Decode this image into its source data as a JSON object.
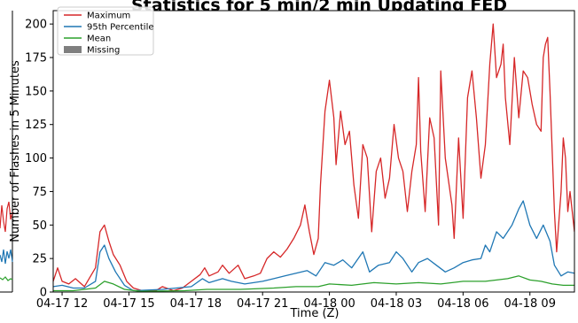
{
  "chart_data": {
    "type": "line",
    "title": "Statistics for 5 min/2 min Updating FED",
    "xlabel": "Time (Z)",
    "ylabel": "Number of Flashes in 5 Minutes",
    "x_unit": "hours",
    "x_ticks": [
      {
        "x": 12,
        "label": "04-17 12"
      },
      {
        "x": 15,
        "label": "04-17 15"
      },
      {
        "x": 18,
        "label": "04-17 18"
      },
      {
        "x": 21,
        "label": "04-17 21"
      },
      {
        "x": 24,
        "label": "04-18 00"
      },
      {
        "x": 27,
        "label": "04-18 03"
      },
      {
        "x": 30,
        "label": "04-18 06"
      },
      {
        "x": 33,
        "label": "04-18 09"
      }
    ],
    "xlim": [
      11.6,
      35.0
    ],
    "ylim": [
      0,
      210
    ],
    "yticks": [
      0,
      25,
      50,
      75,
      100,
      125,
      150,
      175,
      200
    ],
    "grid": false,
    "legend_position": "top-left",
    "series": [
      {
        "name": "Maximum",
        "color": "#d62728",
        "points": [
          [
            11.6,
            8
          ],
          [
            11.8,
            18
          ],
          [
            12.0,
            8
          ],
          [
            12.3,
            6
          ],
          [
            12.6,
            10
          ],
          [
            13.0,
            4
          ],
          [
            13.5,
            18
          ],
          [
            13.7,
            45
          ],
          [
            13.9,
            50
          ],
          [
            14.1,
            38
          ],
          [
            14.3,
            28
          ],
          [
            14.6,
            20
          ],
          [
            14.9,
            8
          ],
          [
            15.2,
            3
          ],
          [
            15.6,
            1
          ],
          [
            16.2,
            1
          ],
          [
            16.5,
            4
          ],
          [
            17.0,
            1
          ],
          [
            17.4,
            3
          ],
          [
            17.8,
            8
          ],
          [
            18.2,
            13
          ],
          [
            18.4,
            18
          ],
          [
            18.6,
            12
          ],
          [
            19.0,
            15
          ],
          [
            19.2,
            20
          ],
          [
            19.5,
            14
          ],
          [
            19.9,
            20
          ],
          [
            20.2,
            10
          ],
          [
            20.6,
            12
          ],
          [
            20.9,
            14
          ],
          [
            21.2,
            25
          ],
          [
            21.5,
            30
          ],
          [
            21.8,
            26
          ],
          [
            22.1,
            32
          ],
          [
            22.4,
            40
          ],
          [
            22.7,
            50
          ],
          [
            22.9,
            65
          ],
          [
            23.1,
            45
          ],
          [
            23.3,
            28
          ],
          [
            23.5,
            40
          ],
          [
            23.6,
            80
          ],
          [
            23.8,
            135
          ],
          [
            24.0,
            158
          ],
          [
            24.2,
            130
          ],
          [
            24.3,
            95
          ],
          [
            24.5,
            135
          ],
          [
            24.7,
            110
          ],
          [
            24.9,
            120
          ],
          [
            25.1,
            80
          ],
          [
            25.3,
            55
          ],
          [
            25.5,
            110
          ],
          [
            25.7,
            100
          ],
          [
            25.9,
            45
          ],
          [
            26.1,
            90
          ],
          [
            26.3,
            100
          ],
          [
            26.5,
            70
          ],
          [
            26.7,
            85
          ],
          [
            26.9,
            125
          ],
          [
            27.1,
            100
          ],
          [
            27.3,
            90
          ],
          [
            27.5,
            60
          ],
          [
            27.7,
            90
          ],
          [
            27.9,
            110
          ],
          [
            28.0,
            160
          ],
          [
            28.1,
            105
          ],
          [
            28.3,
            60
          ],
          [
            28.5,
            130
          ],
          [
            28.7,
            115
          ],
          [
            28.9,
            50
          ],
          [
            29.0,
            165
          ],
          [
            29.2,
            100
          ],
          [
            29.5,
            65
          ],
          [
            29.6,
            40
          ],
          [
            29.8,
            115
          ],
          [
            30.0,
            55
          ],
          [
            30.2,
            145
          ],
          [
            30.4,
            165
          ],
          [
            30.6,
            130
          ],
          [
            30.8,
            85
          ],
          [
            31.0,
            110
          ],
          [
            31.2,
            170
          ],
          [
            31.35,
            200
          ],
          [
            31.5,
            160
          ],
          [
            31.7,
            170
          ],
          [
            31.8,
            185
          ],
          [
            31.9,
            145
          ],
          [
            32.1,
            110
          ],
          [
            32.3,
            175
          ],
          [
            32.5,
            130
          ],
          [
            32.7,
            165
          ],
          [
            32.9,
            160
          ],
          [
            33.1,
            140
          ],
          [
            33.3,
            125
          ],
          [
            33.5,
            120
          ],
          [
            33.6,
            175
          ],
          [
            33.7,
            185
          ],
          [
            33.8,
            190
          ],
          [
            33.9,
            150
          ],
          [
            34.1,
            60
          ],
          [
            34.2,
            30
          ],
          [
            34.4,
            75
          ],
          [
            34.5,
            115
          ],
          [
            34.6,
            100
          ],
          [
            34.7,
            60
          ],
          [
            34.8,
            75
          ],
          [
            34.9,
            60
          ],
          [
            35.0,
            45
          ]
        ]
      },
      {
        "name": "95th Percentile",
        "color": "#1f77b4",
        "points": [
          [
            11.6,
            4
          ],
          [
            12.0,
            5
          ],
          [
            12.5,
            3
          ],
          [
            13.0,
            3
          ],
          [
            13.5,
            8
          ],
          [
            13.7,
            30
          ],
          [
            13.9,
            35
          ],
          [
            14.1,
            25
          ],
          [
            14.4,
            15
          ],
          [
            14.8,
            5
          ],
          [
            15.2,
            1
          ],
          [
            16.5,
            2
          ],
          [
            17.8,
            4
          ],
          [
            18.3,
            10
          ],
          [
            18.6,
            7
          ],
          [
            19.2,
            10
          ],
          [
            19.6,
            8
          ],
          [
            20.2,
            6
          ],
          [
            21.0,
            8
          ],
          [
            21.5,
            10
          ],
          [
            22.0,
            12
          ],
          [
            22.5,
            14
          ],
          [
            23.0,
            16
          ],
          [
            23.4,
            12
          ],
          [
            23.8,
            22
          ],
          [
            24.2,
            20
          ],
          [
            24.6,
            24
          ],
          [
            25.0,
            18
          ],
          [
            25.5,
            30
          ],
          [
            25.8,
            15
          ],
          [
            26.2,
            20
          ],
          [
            26.7,
            22
          ],
          [
            27.0,
            30
          ],
          [
            27.3,
            25
          ],
          [
            27.7,
            15
          ],
          [
            28.0,
            22
          ],
          [
            28.4,
            25
          ],
          [
            28.8,
            20
          ],
          [
            29.2,
            15
          ],
          [
            29.6,
            18
          ],
          [
            30.0,
            22
          ],
          [
            30.4,
            24
          ],
          [
            30.8,
            25
          ],
          [
            31.0,
            35
          ],
          [
            31.2,
            30
          ],
          [
            31.5,
            45
          ],
          [
            31.8,
            40
          ],
          [
            32.2,
            50
          ],
          [
            32.5,
            62
          ],
          [
            32.7,
            68
          ],
          [
            33.0,
            50
          ],
          [
            33.3,
            40
          ],
          [
            33.6,
            50
          ],
          [
            33.9,
            38
          ],
          [
            34.1,
            20
          ],
          [
            34.4,
            12
          ],
          [
            34.7,
            15
          ],
          [
            35.0,
            14
          ]
        ]
      },
      {
        "name": "Mean",
        "color": "#2ca02c",
        "points": [
          [
            11.6,
            1
          ],
          [
            12.5,
            1
          ],
          [
            13.5,
            3
          ],
          [
            13.9,
            8
          ],
          [
            14.3,
            6
          ],
          [
            14.8,
            2
          ],
          [
            15.5,
            0.5
          ],
          [
            17.5,
            1
          ],
          [
            18.5,
            2
          ],
          [
            20.0,
            2
          ],
          [
            21.5,
            3
          ],
          [
            22.5,
            4
          ],
          [
            23.5,
            4
          ],
          [
            24.0,
            6
          ],
          [
            25.0,
            5
          ],
          [
            26.0,
            7
          ],
          [
            27.0,
            6
          ],
          [
            28.0,
            7
          ],
          [
            29.0,
            6
          ],
          [
            30.0,
            8
          ],
          [
            31.0,
            8
          ],
          [
            31.5,
            9
          ],
          [
            32.0,
            10
          ],
          [
            32.5,
            12
          ],
          [
            33.0,
            9
          ],
          [
            33.5,
            8
          ],
          [
            34.0,
            6
          ],
          [
            34.5,
            5
          ],
          [
            35.0,
            5
          ]
        ]
      },
      {
        "name": "Missing",
        "color": "#7f7f7f",
        "points": []
      }
    ]
  }
}
